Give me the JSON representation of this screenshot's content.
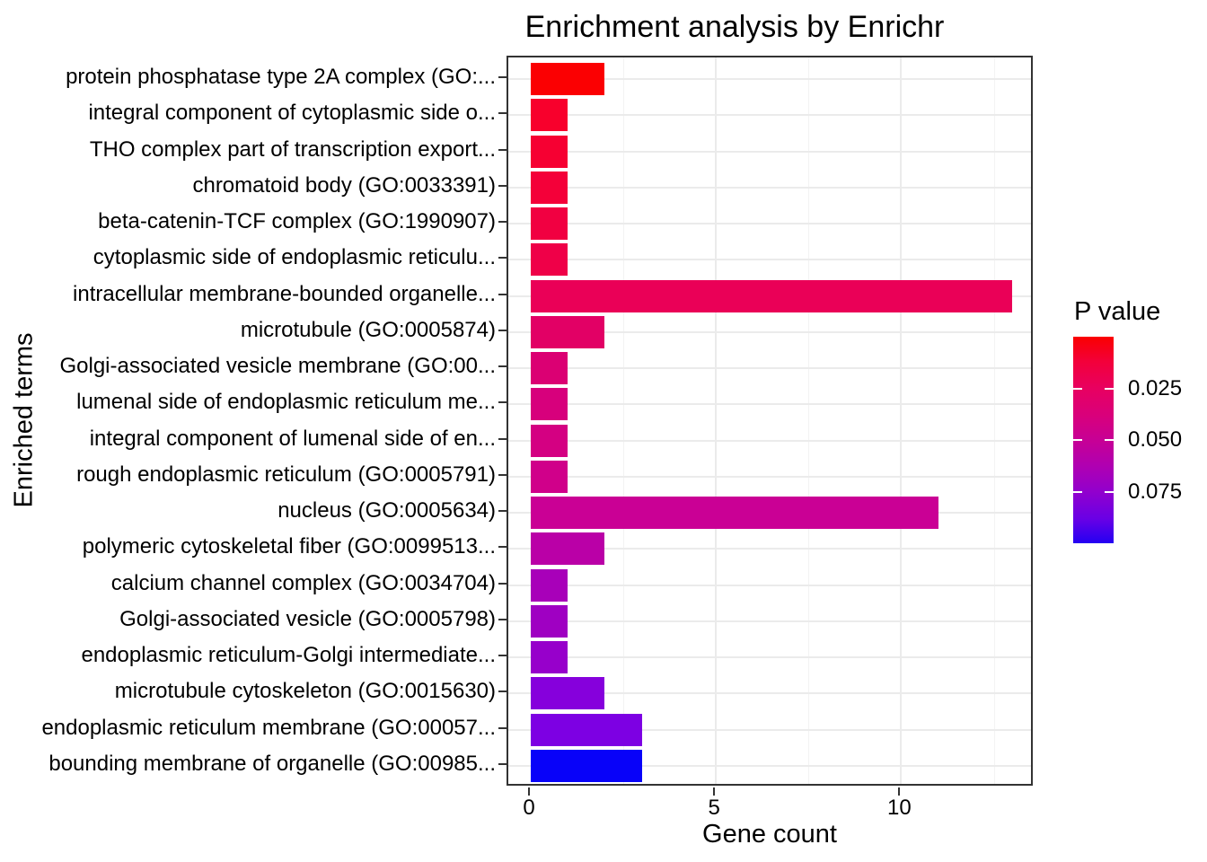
{
  "title": "Enrichment analysis by Enrichr",
  "chart_data": {
    "type": "bar",
    "orientation": "horizontal",
    "title": "Enrichment analysis by Enrichr",
    "xlabel": "Gene count",
    "ylabel": "Enriched terms",
    "xlim": [
      0,
      13.6
    ],
    "x_ticks": [
      0,
      5,
      10
    ],
    "x_major_gridlines": [
      5,
      10
    ],
    "x_minor_gridlines": [
      2.5,
      7.5,
      12.5
    ],
    "grid": true,
    "background": "#ffffff",
    "panel_border_color": "#333333",
    "gridline_color": "#ebebeb",
    "categories": [
      "protein phosphatase type 2A complex (GO:...",
      "integral component of cytoplasmic side o...",
      "THO complex part of transcription export...",
      "chromatoid body (GO:0033391)",
      "beta-catenin-TCF complex (GO:1990907)",
      "cytoplasmic side of endoplasmic reticulu...",
      "intracellular membrane-bounded organelle...",
      "microtubule (GO:0005874)",
      "Golgi-associated vesicle membrane (GO:00...",
      "lumenal side of endoplasmic reticulum me...",
      "integral component of lumenal side of en...",
      "rough endoplasmic reticulum (GO:0005791)",
      "nucleus (GO:0005634)",
      "polymeric cytoskeletal fiber (GO:0099513...",
      "calcium channel complex (GO:0034704)",
      "Golgi-associated vesicle (GO:0005798)",
      "endoplasmic reticulum-Golgi intermediate...",
      "microtubule cytoskeleton (GO:0015630)",
      "endoplasmic reticulum membrane (GO:00057...",
      "bounding membrane of organelle (GO:00985..."
    ],
    "values": [
      2,
      1,
      1,
      1,
      1,
      1,
      13,
      2,
      1,
      1,
      1,
      1,
      11,
      2,
      1,
      1,
      1,
      2,
      3,
      3
    ],
    "bar_colors": [
      "#fb0002",
      "#f8002c",
      "#f60032",
      "#f40039",
      "#f10041",
      "#ef0048",
      "#ea0057",
      "#e20065",
      "#db0073",
      "#d7007c",
      "#d40082",
      "#d0008a",
      "#ca0095",
      "#ba00a7",
      "#a800b9",
      "#9f00c2",
      "#9700cb",
      "#8600dc",
      "#7d00e3",
      "#0802f9"
    ],
    "legend": {
      "title": "P value",
      "position": "right",
      "range": [
        0,
        0.1
      ],
      "tick_labels": [
        "0.025",
        "0.050",
        "0.075"
      ],
      "tick_values": [
        0.025,
        0.05,
        0.075
      ],
      "gradient_stops": [
        {
          "color": "#fa0000",
          "pos": 0
        },
        {
          "color": "#f3003a",
          "pos": 12
        },
        {
          "color": "#e80060",
          "pos": 25
        },
        {
          "color": "#d9007b",
          "pos": 38
        },
        {
          "color": "#c70095",
          "pos": 50
        },
        {
          "color": "#af00b2",
          "pos": 63
        },
        {
          "color": "#9200cd",
          "pos": 75
        },
        {
          "color": "#6a00e5",
          "pos": 88
        },
        {
          "color": "#2400f2",
          "pos": 100
        }
      ]
    }
  }
}
